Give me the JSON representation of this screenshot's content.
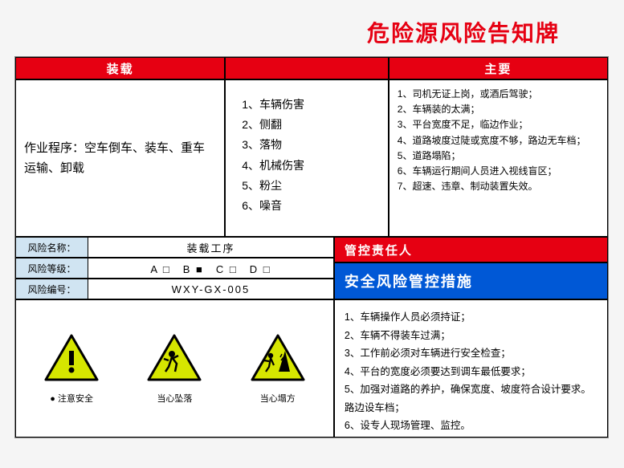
{
  "page_title": "危险源风险告知牌",
  "headers": {
    "h1": "装载",
    "h2": "",
    "h3": "主要"
  },
  "procedure": "作业程序：空车倒车、装车、重车运输、卸载",
  "hazards": [
    "1、车辆伤害",
    "2、侧翻",
    "3、落物",
    "4、机械伤害",
    "5、粉尘",
    "6、噪音"
  ],
  "risks": [
    "1、司机无证上岗，或酒后驾驶；",
    "2、车辆装的太满；",
    "3、平台宽度不足，临边作业；",
    "4、道路坡度过陡或宽度不够，路边无车档；",
    "5、道路塌陷；",
    "6、车辆运行期间人员进入视线盲区；",
    "7、超速、违章、制动装置失效。"
  ],
  "info": {
    "name_label": "风险名称：",
    "name_value": "装载工序",
    "level_label": "风险等级：",
    "level_value": "A □　B ■　C □　D □",
    "code_label": "风险编号：",
    "code_value": "WXY-GX-005"
  },
  "responsible_header": "管控责任人",
  "measures_header": "安全风险管控措施",
  "measures": [
    "1、车辆操作人员必须持证；",
    "2、车辆不得装车过满；",
    "3、工作前必须对车辆进行安全检查；",
    "4、平台的宽度必须要达到调车最低要求；",
    "5、加强对道路的养护，确保宽度、坡度符合设计要求。路边设车档；",
    "6、设专人现场管理、监控。"
  ],
  "signs": [
    {
      "caption": "● 注意安全",
      "type": "exclaim"
    },
    {
      "caption": "当心坠落",
      "type": "fall"
    },
    {
      "caption": "当心塌方",
      "type": "collapse"
    }
  ],
  "colors": {
    "red": "#e60012",
    "blue": "#0058d6",
    "lightblue": "#d0e4f2",
    "tri_fill": "#d6e600",
    "tri_stroke": "#000000"
  }
}
